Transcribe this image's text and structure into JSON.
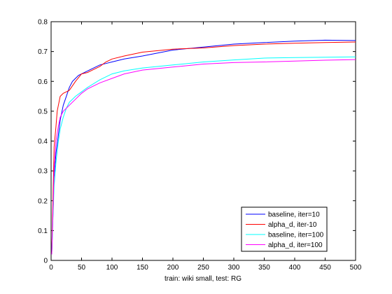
{
  "chart_data": {
    "type": "line",
    "title": "",
    "xlabel": "train: wiki small, test: RG",
    "ylabel": "",
    "xlim": [
      0,
      500
    ],
    "ylim": [
      0,
      0.8
    ],
    "xticks": [
      "0",
      "50",
      "100",
      "150",
      "200",
      "250",
      "300",
      "350",
      "400",
      "450",
      "500"
    ],
    "yticks": [
      "0",
      "0.1",
      "0.2",
      "0.3",
      "0.4",
      "0.5",
      "0.6",
      "0.7",
      "0.8"
    ],
    "grid": false,
    "legend_position": "bottom-right",
    "series": [
      {
        "name": "baseline, iter=10",
        "color": "#0000ff",
        "x": [
          1,
          3,
          5,
          8,
          12,
          15,
          20,
          25,
          30,
          35,
          40,
          45,
          50,
          60,
          70,
          80,
          90,
          100,
          120,
          150,
          200,
          250,
          300,
          350,
          400,
          450,
          500
        ],
        "y": [
          0.02,
          0.15,
          0.28,
          0.36,
          0.42,
          0.47,
          0.52,
          0.55,
          0.58,
          0.6,
          0.61,
          0.62,
          0.625,
          0.635,
          0.645,
          0.655,
          0.66,
          0.665,
          0.675,
          0.685,
          0.705,
          0.715,
          0.725,
          0.73,
          0.735,
          0.738,
          0.737
        ]
      },
      {
        "name": "alpha_d, iter-10",
        "color": "#ff0000",
        "x": [
          1,
          3,
          5,
          8,
          10,
          12,
          15,
          20,
          25,
          30,
          40,
          50,
          60,
          70,
          80,
          90,
          100,
          120,
          150,
          200,
          250,
          300,
          350,
          400,
          450,
          500
        ],
        "y": [
          0.02,
          0.2,
          0.38,
          0.45,
          0.5,
          0.52,
          0.55,
          0.56,
          0.565,
          0.57,
          0.6,
          0.625,
          0.63,
          0.64,
          0.65,
          0.665,
          0.675,
          0.685,
          0.698,
          0.708,
          0.712,
          0.72,
          0.725,
          0.728,
          0.73,
          0.732
        ]
      },
      {
        "name": "baseline, iter=100",
        "color": "#00ffff",
        "x": [
          1,
          3,
          5,
          8,
          12,
          15,
          20,
          25,
          30,
          40,
          50,
          60,
          80,
          100,
          120,
          150,
          200,
          250,
          300,
          350,
          400,
          450,
          500
        ],
        "y": [
          0.02,
          0.14,
          0.25,
          0.33,
          0.4,
          0.44,
          0.48,
          0.51,
          0.53,
          0.55,
          0.565,
          0.58,
          0.605,
          0.625,
          0.635,
          0.645,
          0.655,
          0.665,
          0.672,
          0.678,
          0.68,
          0.681,
          0.682
        ]
      },
      {
        "name": "alpha_d, iter=100",
        "color": "#ff00ff",
        "x": [
          1,
          3,
          5,
          8,
          12,
          15,
          20,
          25,
          30,
          40,
          50,
          60,
          80,
          100,
          120,
          150,
          200,
          250,
          300,
          350,
          400,
          450,
          500
        ],
        "y": [
          0.02,
          0.16,
          0.3,
          0.4,
          0.45,
          0.48,
          0.5,
          0.51,
          0.52,
          0.54,
          0.56,
          0.575,
          0.595,
          0.61,
          0.625,
          0.638,
          0.648,
          0.658,
          0.663,
          0.665,
          0.668,
          0.671,
          0.673
        ]
      }
    ]
  }
}
